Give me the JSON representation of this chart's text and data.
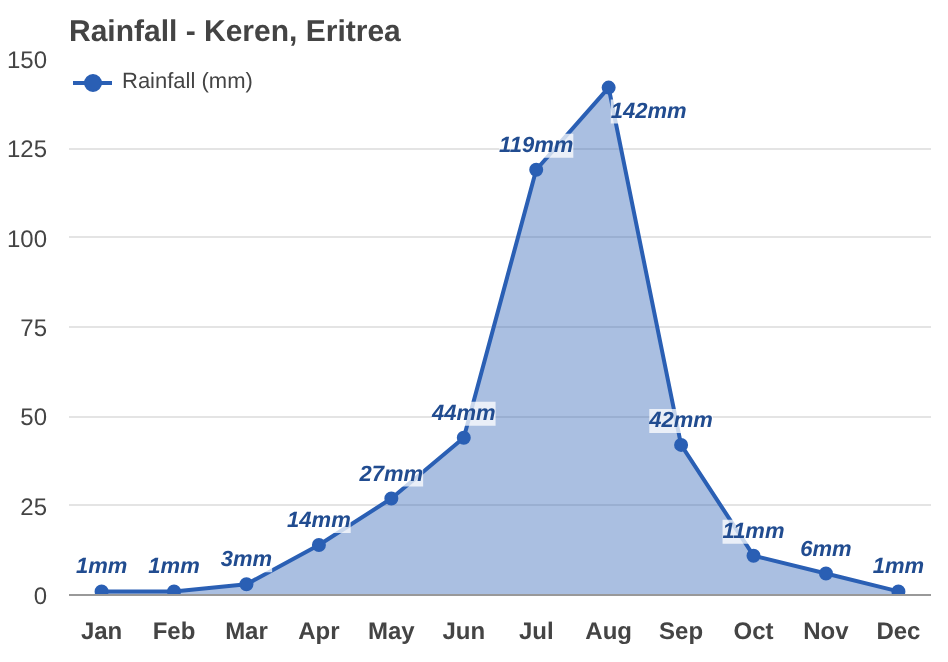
{
  "chart_data": {
    "type": "area",
    "title": "Rainfall - Keren, Eritrea",
    "categories": [
      "Jan",
      "Feb",
      "Mar",
      "Apr",
      "May",
      "Jun",
      "Jul",
      "Aug",
      "Sep",
      "Oct",
      "Nov",
      "Dec"
    ],
    "series": [
      {
        "name": "Rainfall (mm)",
        "color": "#2a5fb4",
        "values": [
          1,
          1,
          3,
          14,
          27,
          44,
          119,
          142,
          42,
          11,
          6,
          1
        ],
        "value_labels": [
          "1mm",
          "1mm",
          "3mm",
          "14mm",
          "27mm",
          "44mm",
          "119mm",
          "142mm",
          "42mm",
          "11mm",
          "6mm",
          "1mm"
        ]
      }
    ],
    "ylim": [
      0,
      150
    ],
    "yticks": [
      0,
      25,
      50,
      75,
      100,
      125,
      150
    ],
    "grid": "y",
    "legend": "top left",
    "marker": "circle"
  }
}
